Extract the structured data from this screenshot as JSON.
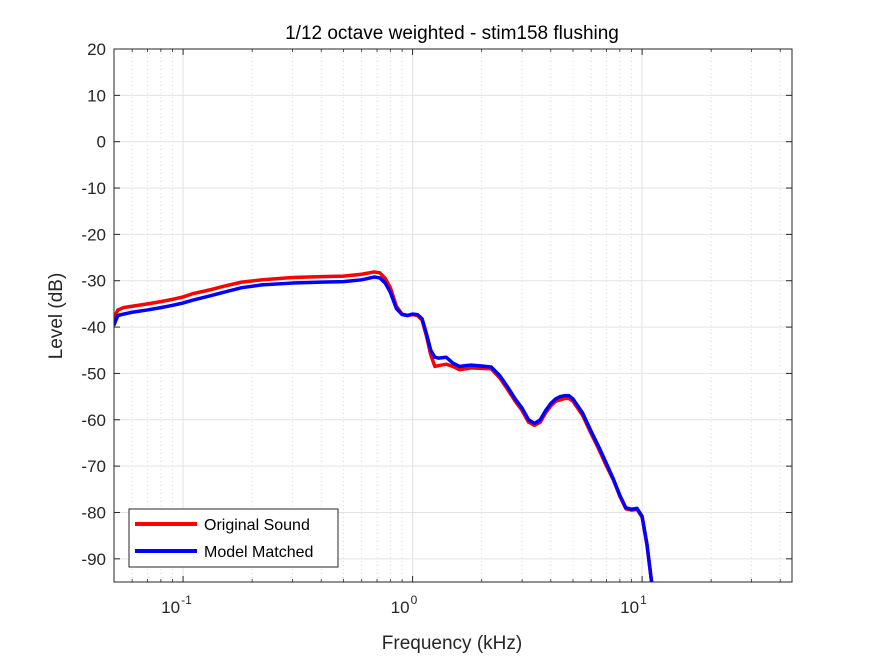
{
  "chart_data": {
    "type": "line",
    "title": "1/12 octave weighted - stim158 flushing",
    "xlabel": "Frequency (kHz)",
    "ylabel": "Level (dB)",
    "xscale": "log",
    "xlim": [
      0.05,
      45
    ],
    "ylim": [
      -95,
      20
    ],
    "yticks": [
      20,
      10,
      0,
      -10,
      -20,
      -30,
      -40,
      -50,
      -60,
      -70,
      -80,
      -90
    ],
    "xticks": [
      {
        "value": 0.1,
        "base": "10",
        "exp": "-1"
      },
      {
        "value": 1,
        "base": "10",
        "exp": "0"
      },
      {
        "value": 10,
        "base": "10",
        "exp": "1"
      }
    ],
    "grid": true,
    "minor_grid": true,
    "legend_position": "bottom-left",
    "series": [
      {
        "name": "Original Sound",
        "color": "#ff0000",
        "x": [
          0.05,
          0.052,
          0.055,
          0.06,
          0.07,
          0.08,
          0.09,
          0.1,
          0.11,
          0.13,
          0.15,
          0.18,
          0.22,
          0.3,
          0.4,
          0.5,
          0.6,
          0.68,
          0.72,
          0.76,
          0.8,
          0.85,
          0.9,
          0.95,
          1.0,
          1.05,
          1.1,
          1.15,
          1.2,
          1.25,
          1.3,
          1.4,
          1.5,
          1.6,
          1.7,
          1.8,
          2.0,
          2.2,
          2.4,
          2.6,
          2.8,
          3.0,
          3.2,
          3.4,
          3.6,
          3.8,
          4.0,
          4.2,
          4.4,
          4.6,
          4.8,
          5.0,
          5.5,
          6.0,
          6.5,
          7.0,
          7.5,
          8.0,
          8.5,
          9.0,
          9.5,
          10.0,
          10.5,
          11.0
        ],
        "values": [
          -38,
          -36.3,
          -35.8,
          -35.5,
          -35,
          -34.5,
          -34,
          -33.5,
          -32.8,
          -32,
          -31.2,
          -30.3,
          -29.8,
          -29.3,
          -29.1,
          -29.0,
          -28.6,
          -28.1,
          -28.3,
          -29.5,
          -31.5,
          -35.5,
          -37.2,
          -37.5,
          -37.3,
          -37.5,
          -38.5,
          -42,
          -46,
          -48.5,
          -48.3,
          -48,
          -48.5,
          -49.2,
          -49,
          -48.8,
          -48.9,
          -49.0,
          -51,
          -53.5,
          -56,
          -58,
          -60.5,
          -61.2,
          -60.5,
          -58.5,
          -57,
          -56,
          -55.7,
          -55.4,
          -55.4,
          -56,
          -59,
          -63,
          -66.5,
          -70,
          -73,
          -76.5,
          -79.2,
          -79.5,
          -79.3,
          -81,
          -87,
          -95
        ]
      },
      {
        "name": "Model Matched",
        "color": "#0000ff",
        "x": [
          0.05,
          0.052,
          0.055,
          0.06,
          0.07,
          0.08,
          0.09,
          0.1,
          0.11,
          0.13,
          0.15,
          0.18,
          0.22,
          0.3,
          0.4,
          0.5,
          0.6,
          0.68,
          0.72,
          0.76,
          0.8,
          0.85,
          0.9,
          0.95,
          1.0,
          1.05,
          1.1,
          1.15,
          1.2,
          1.25,
          1.3,
          1.4,
          1.5,
          1.6,
          1.7,
          1.8,
          2.0,
          2.2,
          2.4,
          2.6,
          2.8,
          3.0,
          3.2,
          3.4,
          3.6,
          3.8,
          4.0,
          4.2,
          4.4,
          4.6,
          4.8,
          5.0,
          5.5,
          6.0,
          6.5,
          7.0,
          7.5,
          8.0,
          8.5,
          9.0,
          9.5,
          10.0,
          10.5,
          11.0
        ],
        "values": [
          -39.5,
          -37.5,
          -37.2,
          -36.8,
          -36.3,
          -35.8,
          -35.3,
          -34.8,
          -34.2,
          -33.3,
          -32.5,
          -31.5,
          -30.9,
          -30.5,
          -30.3,
          -30.2,
          -29.8,
          -29.2,
          -29.4,
          -30.5,
          -32.5,
          -36,
          -37.3,
          -37.5,
          -37.2,
          -37.3,
          -38.2,
          -41.5,
          -45,
          -46.5,
          -46.7,
          -46.5,
          -47.8,
          -48.5,
          -48.3,
          -48.2,
          -48.4,
          -48.6,
          -50.5,
          -53,
          -55.5,
          -57.5,
          -60,
          -60.8,
          -60,
          -58,
          -56.5,
          -55.5,
          -55,
          -54.8,
          -54.8,
          -55.5,
          -58.5,
          -62.5,
          -66,
          -69.5,
          -72.8,
          -76.3,
          -79,
          -79.3,
          -79.1,
          -80.8,
          -86.8,
          -95
        ]
      }
    ]
  }
}
